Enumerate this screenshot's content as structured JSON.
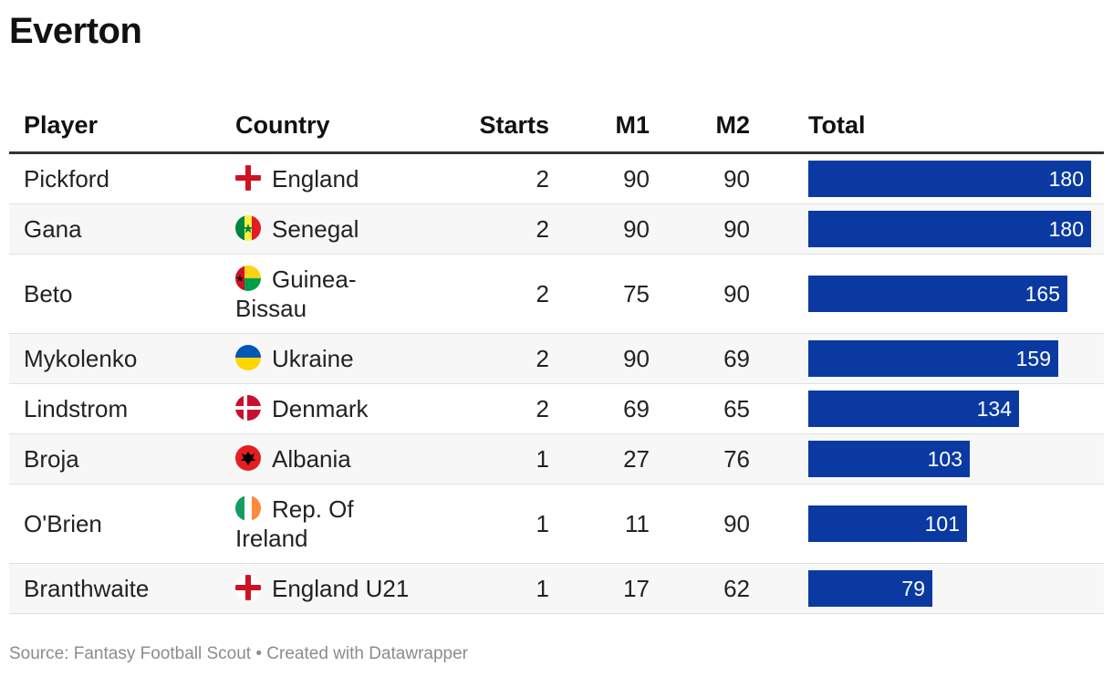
{
  "title": "Everton",
  "headers": {
    "player": "Player",
    "country": "Country",
    "starts": "Starts",
    "m1": "M1",
    "m2": "M2",
    "total": "Total"
  },
  "rows": [
    {
      "player": "Pickford",
      "country": "England",
      "flag": "england-flag-icon",
      "starts": "2",
      "m1": "90",
      "m2": "90",
      "total": "180"
    },
    {
      "player": "Gana",
      "country": "Senegal",
      "flag": "senegal-flag-icon",
      "starts": "2",
      "m1": "90",
      "m2": "90",
      "total": "180"
    },
    {
      "player": "Beto",
      "country": "Guinea-Bissau",
      "flag": "guinea-bissau-flag-icon",
      "starts": "2",
      "m1": "75",
      "m2": "90",
      "total": "165"
    },
    {
      "player": "Mykolenko",
      "country": "Ukraine",
      "flag": "ukraine-flag-icon",
      "starts": "2",
      "m1": "90",
      "m2": "69",
      "total": "159"
    },
    {
      "player": "Lindstrom",
      "country": "Denmark",
      "flag": "denmark-flag-icon",
      "starts": "2",
      "m1": "69",
      "m2": "65",
      "total": "134"
    },
    {
      "player": "Broja",
      "country": "Albania",
      "flag": "albania-flag-icon",
      "starts": "1",
      "m1": "27",
      "m2": "76",
      "total": "103"
    },
    {
      "player": "O'Brien",
      "country": "Rep. Of Ireland",
      "flag": "ireland-flag-icon",
      "starts": "1",
      "m1": "11",
      "m2": "90",
      "total": "101"
    },
    {
      "player": "Branthwaite",
      "country": "England U21",
      "flag": "england-flag-icon",
      "starts": "1",
      "m1": "17",
      "m2": "62",
      "total": "79"
    }
  ],
  "chart_data": {
    "type": "table",
    "columns": [
      "Player",
      "Country",
      "Starts",
      "M1",
      "M2",
      "Total"
    ],
    "bar_column": "Total",
    "bar_color": "#0a3aa1",
    "bar_max": 180,
    "categories": [
      "Pickford",
      "Gana",
      "Beto",
      "Mykolenko",
      "Lindstrom",
      "Broja",
      "O'Brien",
      "Branthwaite"
    ],
    "values": [
      180,
      180,
      165,
      159,
      134,
      103,
      101,
      79
    ]
  },
  "colors": {
    "bar": "#0a3aa1",
    "stripe": "#f7f7f7",
    "header_rule": "#333333"
  },
  "footer": "Source: Fantasy Football Scout • Created with Datawrapper"
}
